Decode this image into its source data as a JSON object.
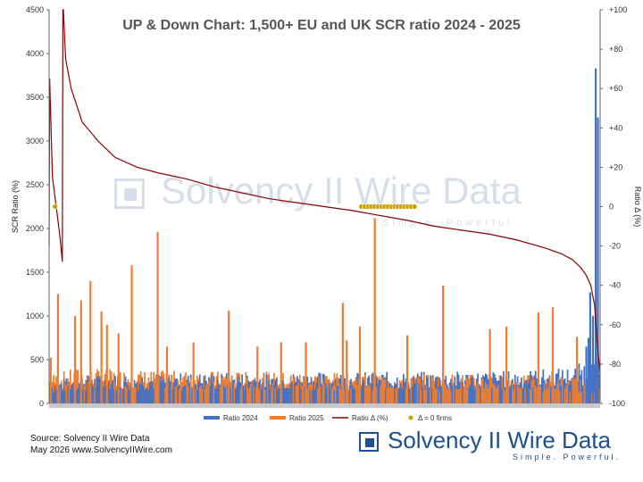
{
  "chart_data": {
    "type": "bar",
    "title": "UP & Down Chart: 1,500+ EU and UK SCR ratio 2024 - 2025",
    "xlabel": "",
    "ylabel": "SCR Ratio (%)",
    "y2label": "Ratio Δ (%)",
    "ylim": [
      0,
      4500
    ],
    "y2lim": [
      -100,
      100
    ],
    "yticks": [
      "0",
      "500",
      "1000",
      "1500",
      "2000",
      "2500",
      "3000",
      "3500",
      "4000",
      "4500"
    ],
    "y2ticks": [
      "-100",
      "-80",
      "-60",
      "-40",
      "-20",
      "0",
      "+20",
      "+40",
      "+60",
      "+80",
      "+100"
    ],
    "legend_position": "bottom",
    "n_firms": 1500,
    "sort": "firms sorted by ratio change, largest increase on the left",
    "series": [
      {
        "name": "Ratio 2024",
        "kind": "bar",
        "color": "#4472c4",
        "axis": "left",
        "profile_x": [
          0.0,
          0.05,
          0.2,
          0.45,
          0.7,
          0.85,
          0.95,
          1.0
        ],
        "profile_typical": [
          180,
          230,
          250,
          255,
          260,
          270,
          300,
          420
        ],
        "highlights": [
          {
            "x": 0.992,
            "value": 3830
          },
          {
            "x": 0.996,
            "value": 3270
          },
          {
            "x": 0.982,
            "value": 1270
          },
          {
            "x": 0.987,
            "value": 1000
          },
          {
            "x": 0.979,
            "value": 750
          },
          {
            "x": 0.975,
            "value": 650
          }
        ]
      },
      {
        "name": "Ratio 2025",
        "kind": "bar",
        "color": "#ed7d31",
        "axis": "left",
        "profile_x": [
          0.0,
          0.05,
          0.2,
          0.45,
          0.7,
          0.85,
          0.95,
          1.0
        ],
        "profile_typical": [
          240,
          290,
          270,
          255,
          245,
          235,
          220,
          160
        ],
        "highlights": [
          {
            "x": 0.003,
            "value": 520
          },
          {
            "x": 0.016,
            "value": 1250
          },
          {
            "x": 0.047,
            "value": 1000
          },
          {
            "x": 0.058,
            "value": 1180
          },
          {
            "x": 0.075,
            "value": 1400
          },
          {
            "x": 0.095,
            "value": 1050
          },
          {
            "x": 0.105,
            "value": 900
          },
          {
            "x": 0.126,
            "value": 800
          },
          {
            "x": 0.15,
            "value": 1580
          },
          {
            "x": 0.197,
            "value": 1960
          },
          {
            "x": 0.214,
            "value": 650
          },
          {
            "x": 0.262,
            "value": 700
          },
          {
            "x": 0.326,
            "value": 1060
          },
          {
            "x": 0.378,
            "value": 650
          },
          {
            "x": 0.421,
            "value": 700
          },
          {
            "x": 0.466,
            "value": 700
          },
          {
            "x": 0.533,
            "value": 1150
          },
          {
            "x": 0.54,
            "value": 720
          },
          {
            "x": 0.564,
            "value": 880
          },
          {
            "x": 0.591,
            "value": 2120
          },
          {
            "x": 0.65,
            "value": 780
          },
          {
            "x": 0.715,
            "value": 1350
          },
          {
            "x": 0.8,
            "value": 850
          },
          {
            "x": 0.83,
            "value": 880
          },
          {
            "x": 0.888,
            "value": 1040
          },
          {
            "x": 0.914,
            "value": 1100
          },
          {
            "x": 0.958,
            "value": 760
          },
          {
            "x": 0.992,
            "value": 2470
          }
        ]
      },
      {
        "name": "Ratio Δ (%)",
        "kind": "line",
        "color": "#8b0000",
        "axis": "right",
        "x": [
          0.0,
          0.001,
          0.006,
          0.013,
          0.02,
          0.024,
          0.025,
          0.026,
          0.03,
          0.04,
          0.06,
          0.09,
          0.12,
          0.16,
          0.2,
          0.25,
          0.3,
          0.35,
          0.4,
          0.45,
          0.5,
          0.55,
          0.59,
          0.65,
          0.7,
          0.75,
          0.8,
          0.85,
          0.9,
          0.93,
          0.95,
          0.965,
          0.975,
          0.983,
          0.99,
          0.995,
          1.0
        ],
        "y": [
          -20,
          65,
          15,
          0,
          -16,
          -28,
          100,
          100,
          75,
          60,
          43,
          33,
          25,
          20,
          17,
          14,
          10,
          7,
          4,
          2,
          0,
          -2,
          -4,
          -7,
          -10,
          -12,
          -14,
          -17,
          -21,
          -24,
          -27,
          -31,
          -35,
          -40,
          -50,
          -70,
          -85
        ]
      },
      {
        "name": "Δ = 0 firms",
        "kind": "marker",
        "color": "#c8a000",
        "axis": "right",
        "x": [
          0.011,
          0.567,
          0.573,
          0.579,
          0.585,
          0.591,
          0.597,
          0.603,
          0.609,
          0.615,
          0.621,
          0.627,
          0.633,
          0.639,
          0.645,
          0.651,
          0.657,
          0.663
        ],
        "y": [
          0,
          0,
          0,
          0,
          0,
          0,
          0,
          0,
          0,
          0,
          0,
          0,
          0,
          0,
          0,
          0,
          0,
          0
        ]
      }
    ]
  },
  "source_line": "Source: Solvency II Wire Data",
  "date_line": "May 2026 www.SolvencyIIWire.com",
  "brand": {
    "name": "Solvency II Wire Data",
    "tagline": "Simple. Powerful."
  },
  "watermark": {
    "name": "Solvency II Wire Data",
    "tagline": "Simple. Powerful."
  }
}
